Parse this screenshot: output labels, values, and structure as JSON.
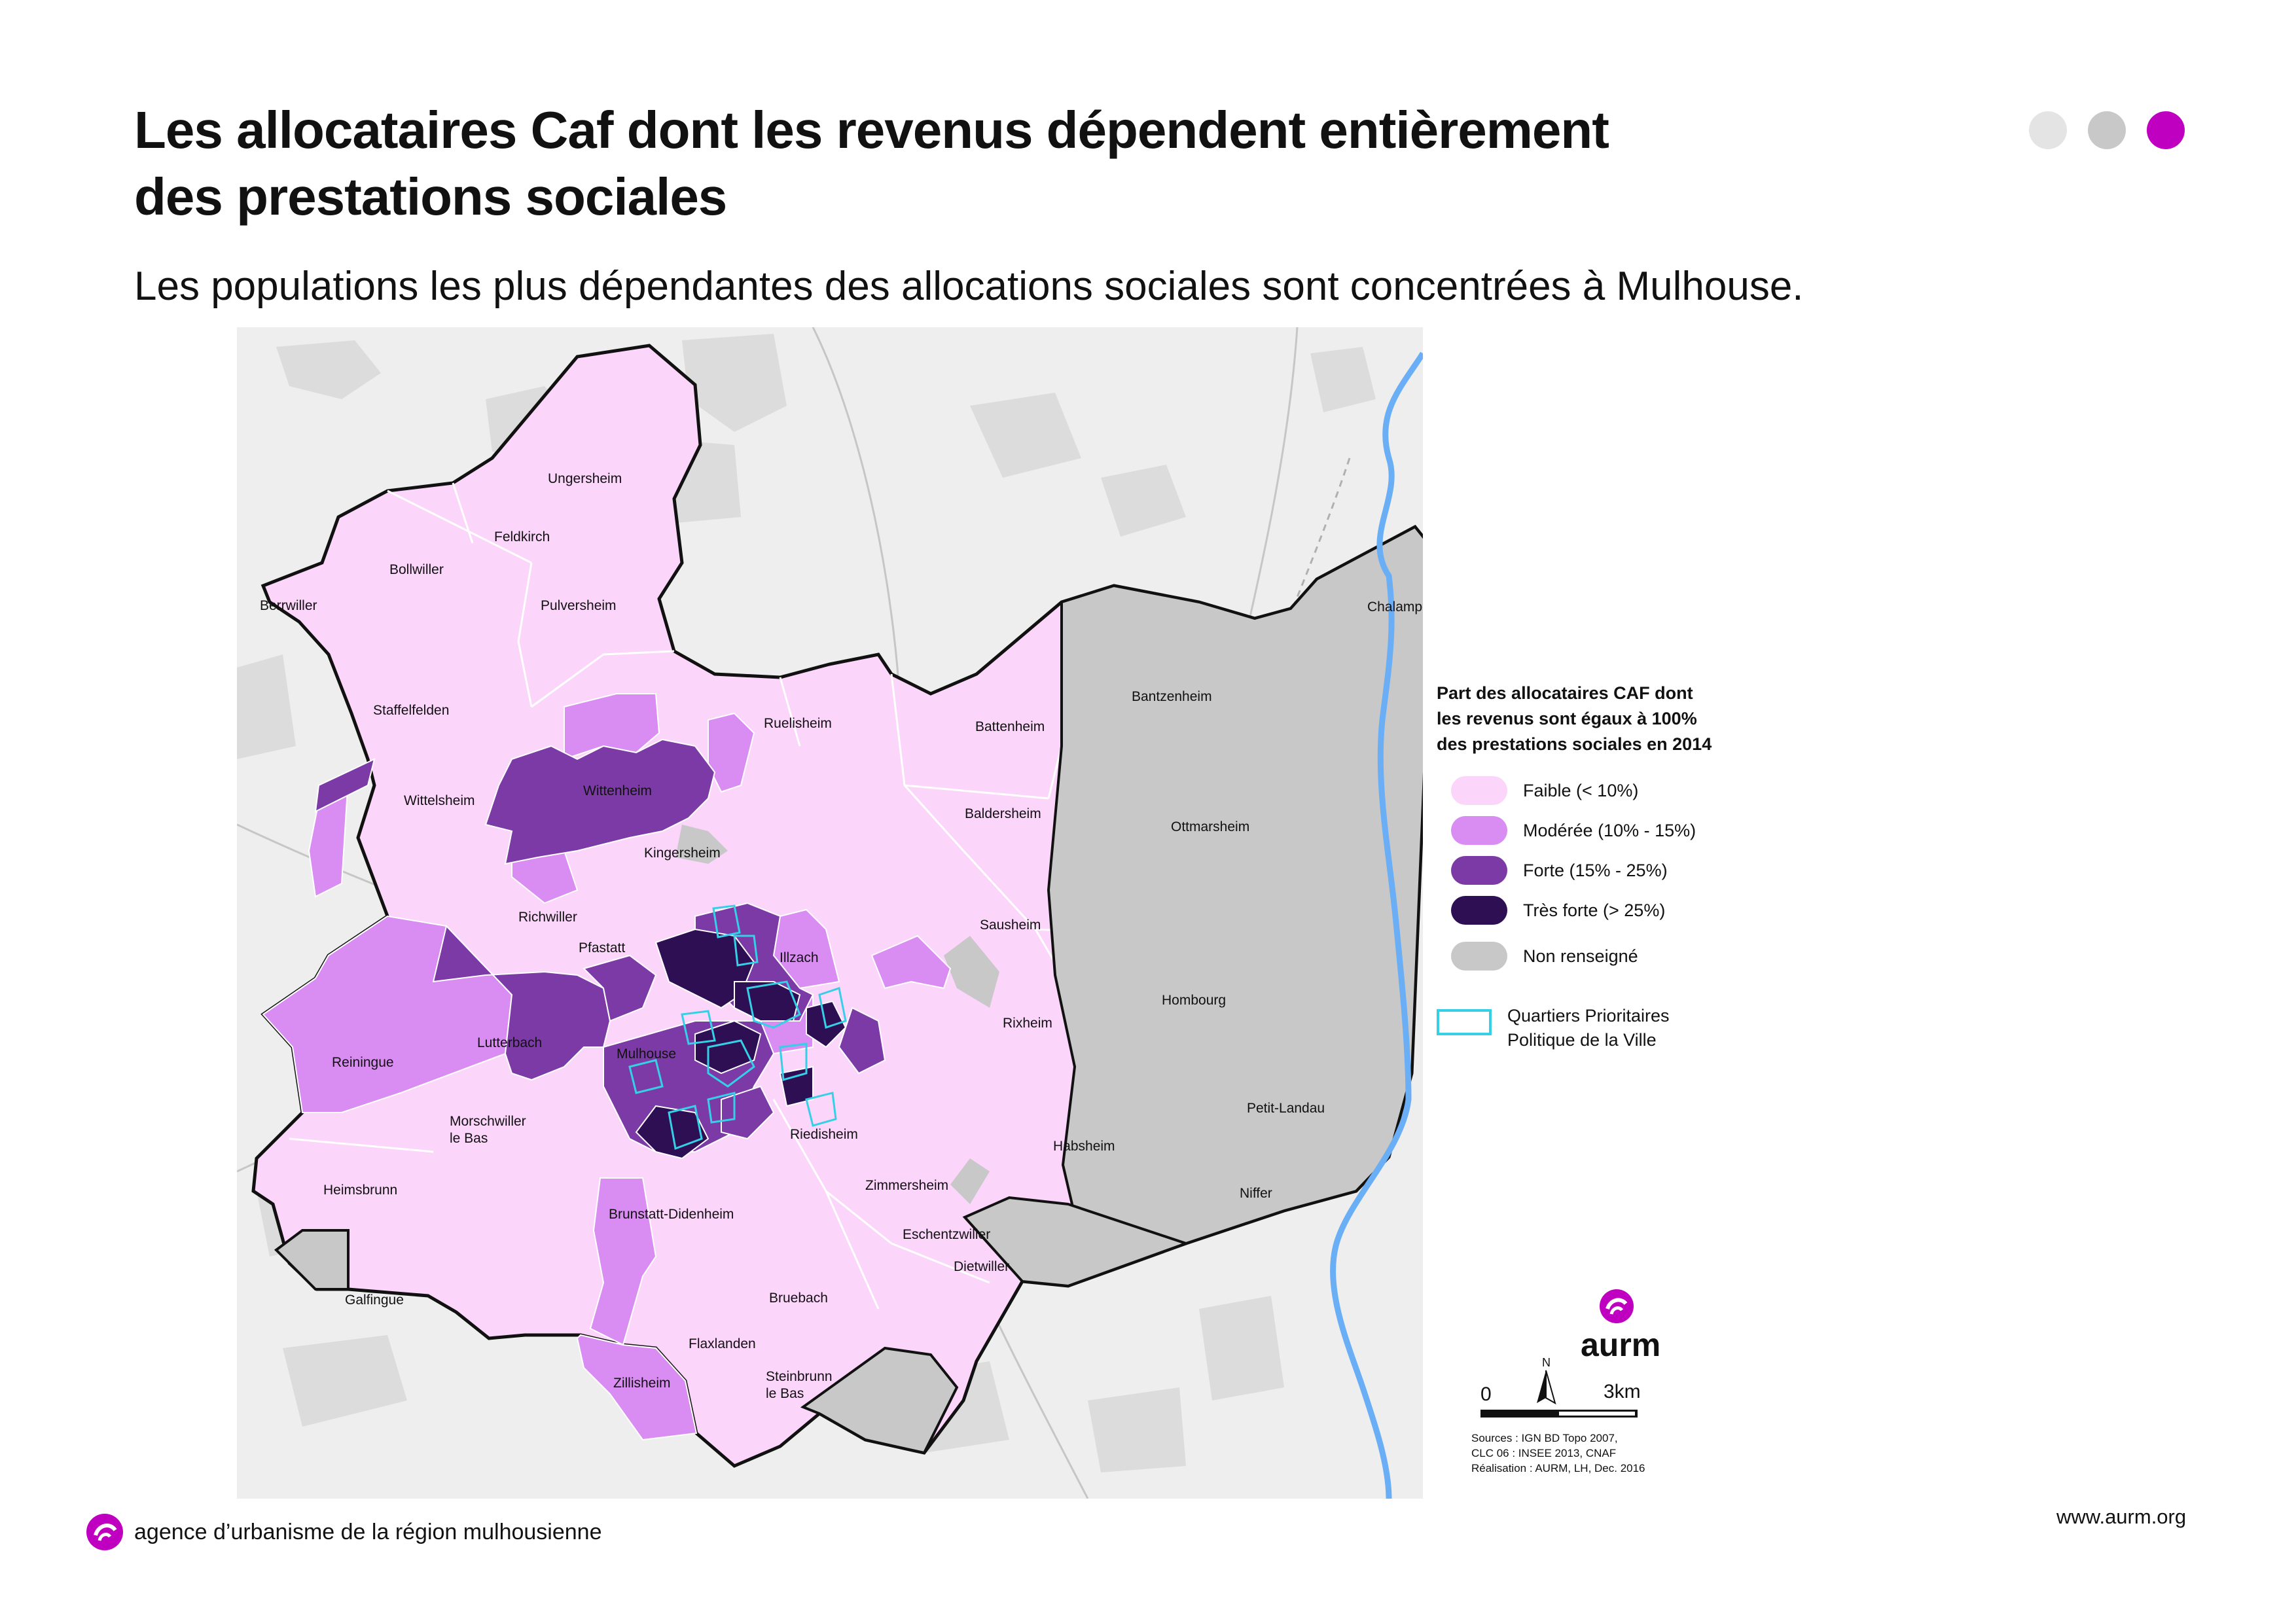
{
  "header": {
    "title_line1": "Les allocataires Caf dont les revenus dépendent entièrement",
    "title_line2": "des prestations sociales",
    "subtitle": "Les populations les plus dépendantes des allocations sociales sont concentrées à Mulhouse."
  },
  "page_dots": [
    {
      "color": "#e4e4e4"
    },
    {
      "color": "#c8c8c8"
    },
    {
      "color": "#c000c0"
    }
  ],
  "colors": {
    "faible": "#fcd5fb",
    "moderee": "#d98cf1",
    "forte": "#7b3aa6",
    "tres_forte": "#2e0f54",
    "non_renseigne": "#c8c8c8",
    "qpv": "#36d0e6",
    "river": "#6aaef5",
    "background": "#eeeeee"
  },
  "communes": [
    {
      "name": "Ungersheim",
      "class": "Faible"
    },
    {
      "name": "Feldkirch",
      "class": "Faible"
    },
    {
      "name": "Bollwiller",
      "class": "Faible"
    },
    {
      "name": "Berrwiller",
      "class": "Faible"
    },
    {
      "name": "Pulversheim",
      "class": "Faible"
    },
    {
      "name": "Staffelfelden",
      "class": "Faible"
    },
    {
      "name": "Wittelsheim",
      "class": "Faible"
    },
    {
      "name": "Wittenheim",
      "class": "Forte"
    },
    {
      "name": "Ruelisheim",
      "class": "Faible"
    },
    {
      "name": "Battenheim",
      "class": "Faible"
    },
    {
      "name": "Baldersheim",
      "class": "Faible"
    },
    {
      "name": "Kingersheim",
      "class": "Modérée"
    },
    {
      "name": "Richwiller",
      "class": "Faible"
    },
    {
      "name": "Pfastatt",
      "class": "Forte"
    },
    {
      "name": "Illzach",
      "class": "Forte"
    },
    {
      "name": "Sausheim",
      "class": "Faible"
    },
    {
      "name": "Rixheim",
      "class": "Faible"
    },
    {
      "name": "Reiningue",
      "class": "Modérée"
    },
    {
      "name": "Lutterbach",
      "class": "Forte"
    },
    {
      "name": "Mulhouse",
      "class": "Très forte"
    },
    {
      "name": "Morschwiller le Bas",
      "class": "Faible"
    },
    {
      "name": "Heimsbrunn",
      "class": "Faible"
    },
    {
      "name": "Riedisheim",
      "class": "Modérée"
    },
    {
      "name": "Habsheim",
      "class": "Faible"
    },
    {
      "name": "Zimmersheim",
      "class": "Faible"
    },
    {
      "name": "Brunstatt-Didenheim",
      "class": "Faible"
    },
    {
      "name": "Eschentzwiller",
      "class": "Faible"
    },
    {
      "name": "Dietwiller",
      "class": "Non renseigné"
    },
    {
      "name": "Bruebach",
      "class": "Faible"
    },
    {
      "name": "Flaxlanden",
      "class": "Faible"
    },
    {
      "name": "Zillisheim",
      "class": "Modérée"
    },
    {
      "name": "Steinbrunn le Bas",
      "class": "Non renseigné"
    },
    {
      "name": "Galfingue",
      "class": "Non renseigné"
    },
    {
      "name": "Chalampé",
      "class": "Non renseigné"
    },
    {
      "name": "Bantzenheim",
      "class": "Non renseigné"
    },
    {
      "name": "Ottmarsheim",
      "class": "Non renseigné"
    },
    {
      "name": "Hombourg",
      "class": "Non renseigné"
    },
    {
      "name": "Petit-Landau",
      "class": "Non renseigné"
    },
    {
      "name": "Niffer",
      "class": "Non renseigné"
    }
  ],
  "map_labels": {
    "ungersheim": "Ungersheim",
    "feldkirch": "Feldkirch",
    "bollwiller": "Bollwiller",
    "berrwiller": "Berrwiller",
    "pulversheim": "Pulversheim",
    "staffelfelden": "Staffelfelden",
    "wittelsheim": "Wittelsheim",
    "wittenheim": "Wittenheim",
    "ruelisheim": "Ruelisheim",
    "battenheim": "Battenheim",
    "baldersheim": "Baldersheim",
    "kingersheim": "Kingersheim",
    "richwiller": "Richwiller",
    "pfastatt": "Pfastatt",
    "illzach": "Illzach",
    "sausheim": "Sausheim",
    "rixheim": "Rixheim",
    "reiningue": "Reiningue",
    "lutterbach": "Lutterbach",
    "mulhouse": "Mulhouse",
    "morschwiller_1": "Morschwiller",
    "morschwiller_2": "le Bas",
    "heimsbrunn": "Heimsbrunn",
    "riedisheim": "Riedisheim",
    "habsheim": "Habsheim",
    "zimmersheim": "Zimmersheim",
    "brunstatt": "Brunstatt-Didenheim",
    "eschentzwiller": "Eschentzwiller",
    "dietwiller": "Dietwiller",
    "bruebach": "Bruebach",
    "flaxlanden": "Flaxlanden",
    "zillisheim": "Zillisheim",
    "steinbrunn_1": "Steinbrunn",
    "steinbrunn_2": "le Bas",
    "galfingue": "Galfingue",
    "chalampe": "Chalampé",
    "bantzenheim": "Bantzenheim",
    "ottmarsheim": "Ottmarsheim",
    "hombourg": "Hombourg",
    "petit_landau": "Petit-Landau",
    "niffer": "Niffer"
  },
  "legend": {
    "title_line1": "Part des allocataires CAF dont",
    "title_line2": "les revenus sont égaux à 100%",
    "title_line3": "des prestations sociales en 2014",
    "items": [
      {
        "label": "Faible (< 10%)",
        "color": "#fcd5fb"
      },
      {
        "label": "Modérée (10% - 15%)",
        "color": "#d98cf1"
      },
      {
        "label": "Forte (15% - 25%)",
        "color": "#7b3aa6"
      },
      {
        "label": "Très forte (> 25%)",
        "color": "#2e0f54"
      },
      {
        "label": "Non renseigné",
        "color": "#c8c8c8"
      }
    ],
    "qpv_line1": "Quartiers Prioritaires",
    "qpv_line2": "Politique de la Ville"
  },
  "north_label": "N",
  "scale": {
    "start": "0",
    "end": "3km"
  },
  "logo_text": "aurm",
  "sources": {
    "line1": "Sources : IGN BD Topo 2007,",
    "line2": "CLC 06 : INSEE 2013, CNAF",
    "line3": "Réalisation : AURM, LH, Dec. 2016"
  },
  "footer": {
    "agency": "agence d’urbanisme de la région mulhousienne",
    "url": "www.aurm.org"
  }
}
